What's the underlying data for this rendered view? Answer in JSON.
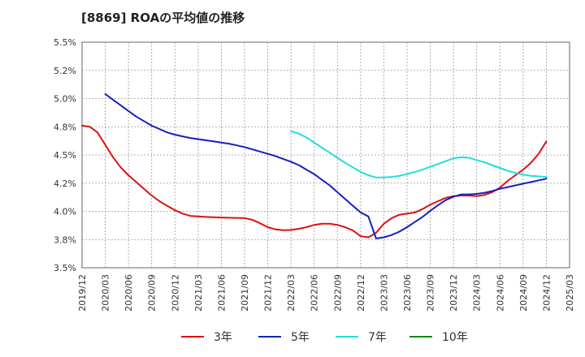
{
  "chart_data": {
    "type": "line",
    "title": "[8869]  ROAの平均値の推移",
    "xlabel": "",
    "ylabel": "",
    "x_ticks": [
      "2019/12",
      "2020/03",
      "2020/06",
      "2020/09",
      "2020/12",
      "2021/03",
      "2021/06",
      "2021/09",
      "2021/12",
      "2022/03",
      "2022/06",
      "2022/09",
      "2022/12",
      "2023/03",
      "2023/06",
      "2023/09",
      "2023/12",
      "2024/03",
      "2024/06",
      "2024/09",
      "2024/12",
      "2025/03"
    ],
    "y_ticks": [
      "3.5%",
      "3.8%",
      "4.0%",
      "4.2%",
      "4.5%",
      "4.8%",
      "5.0%",
      "5.2%",
      "5.5%"
    ],
    "ylim": [
      3.5,
      5.5
    ],
    "grid": true,
    "legend_position": "bottom",
    "series": [
      {
        "name": "3年",
        "color": "#dd1111",
        "points": [
          [
            "2019/12",
            4.76
          ],
          [
            "2020/01",
            4.75
          ],
          [
            "2020/02",
            4.7
          ],
          [
            "2020/03",
            4.59
          ],
          [
            "2020/04",
            4.48
          ],
          [
            "2020/05",
            4.39
          ],
          [
            "2020/06",
            4.32
          ],
          [
            "2020/07",
            4.26
          ],
          [
            "2020/08",
            4.2
          ],
          [
            "2020/09",
            4.14
          ],
          [
            "2020/10",
            4.09
          ],
          [
            "2020/11",
            4.05
          ],
          [
            "2020/12",
            4.01
          ],
          [
            "2021/01",
            3.98
          ],
          [
            "2021/02",
            3.96
          ],
          [
            "2021/03",
            3.955
          ],
          [
            "2021/04",
            3.95
          ],
          [
            "2021/05",
            3.948
          ],
          [
            "2021/06",
            3.945
          ],
          [
            "2021/07",
            3.943
          ],
          [
            "2021/08",
            3.942
          ],
          [
            "2021/09",
            3.94
          ],
          [
            "2021/10",
            3.925
          ],
          [
            "2021/11",
            3.895
          ],
          [
            "2021/12",
            3.86
          ],
          [
            "2022/01",
            3.84
          ],
          [
            "2022/02",
            3.833
          ],
          [
            "2022/03",
            3.835
          ],
          [
            "2022/04",
            3.845
          ],
          [
            "2022/05",
            3.86
          ],
          [
            "2022/06",
            3.88
          ],
          [
            "2022/07",
            3.89
          ],
          [
            "2022/08",
            3.89
          ],
          [
            "2022/09",
            3.88
          ],
          [
            "2022/10",
            3.86
          ],
          [
            "2022/11",
            3.83
          ],
          [
            "2022/12",
            3.78
          ],
          [
            "2023/01",
            3.77
          ],
          [
            "2023/02",
            3.81
          ],
          [
            "2023/03",
            3.89
          ],
          [
            "2023/04",
            3.94
          ],
          [
            "2023/05",
            3.97
          ],
          [
            "2023/06",
            3.98
          ],
          [
            "2023/07",
            3.99
          ],
          [
            "2023/08",
            4.02
          ],
          [
            "2023/09",
            4.06
          ],
          [
            "2023/10",
            4.09
          ],
          [
            "2023/11",
            4.12
          ],
          [
            "2023/12",
            4.135
          ],
          [
            "2024/01",
            4.14
          ],
          [
            "2024/02",
            4.14
          ],
          [
            "2024/03",
            4.135
          ],
          [
            "2024/04",
            4.145
          ],
          [
            "2024/05",
            4.17
          ],
          [
            "2024/06",
            4.21
          ],
          [
            "2024/07",
            4.27
          ],
          [
            "2024/08",
            4.32
          ],
          [
            "2024/09",
            4.37
          ],
          [
            "2024/10",
            4.43
          ],
          [
            "2024/11",
            4.51
          ],
          [
            "2024/12",
            4.62
          ]
        ]
      },
      {
        "name": "5年",
        "color": "#1122bb",
        "points": [
          [
            "2020/03",
            5.04
          ],
          [
            "2020/04",
            4.99
          ],
          [
            "2020/05",
            4.94
          ],
          [
            "2020/06",
            4.89
          ],
          [
            "2020/07",
            4.84
          ],
          [
            "2020/08",
            4.8
          ],
          [
            "2020/09",
            4.76
          ],
          [
            "2020/10",
            4.73
          ],
          [
            "2020/11",
            4.7
          ],
          [
            "2020/12",
            4.68
          ],
          [
            "2021/01",
            4.665
          ],
          [
            "2021/02",
            4.65
          ],
          [
            "2021/03",
            4.64
          ],
          [
            "2021/04",
            4.63
          ],
          [
            "2021/05",
            4.62
          ],
          [
            "2021/06",
            4.61
          ],
          [
            "2021/07",
            4.6
          ],
          [
            "2021/08",
            4.585
          ],
          [
            "2021/09",
            4.57
          ],
          [
            "2021/10",
            4.55
          ],
          [
            "2021/11",
            4.53
          ],
          [
            "2021/12",
            4.51
          ],
          [
            "2022/01",
            4.49
          ],
          [
            "2022/02",
            4.465
          ],
          [
            "2022/03",
            4.44
          ],
          [
            "2022/04",
            4.41
          ],
          [
            "2022/05",
            4.37
          ],
          [
            "2022/06",
            4.33
          ],
          [
            "2022/07",
            4.28
          ],
          [
            "2022/08",
            4.23
          ],
          [
            "2022/09",
            4.17
          ],
          [
            "2022/10",
            4.11
          ],
          [
            "2022/11",
            4.05
          ],
          [
            "2022/12",
            3.99
          ],
          [
            "2023/01",
            3.955
          ],
          [
            "2023/02",
            3.76
          ],
          [
            "2023/03",
            3.77
          ],
          [
            "2023/04",
            3.79
          ],
          [
            "2023/05",
            3.82
          ],
          [
            "2023/06",
            3.86
          ],
          [
            "2023/07",
            3.905
          ],
          [
            "2023/08",
            3.95
          ],
          [
            "2023/09",
            4.005
          ],
          [
            "2023/10",
            4.055
          ],
          [
            "2023/11",
            4.1
          ],
          [
            "2023/12",
            4.13
          ],
          [
            "2024/01",
            4.15
          ],
          [
            "2024/02",
            4.15
          ],
          [
            "2024/03",
            4.155
          ],
          [
            "2024/04",
            4.165
          ],
          [
            "2024/05",
            4.18
          ],
          [
            "2024/06",
            4.2
          ],
          [
            "2024/07",
            4.215
          ],
          [
            "2024/08",
            4.23
          ],
          [
            "2024/09",
            4.245
          ],
          [
            "2024/10",
            4.26
          ],
          [
            "2024/11",
            4.275
          ],
          [
            "2024/12",
            4.29
          ]
        ]
      },
      {
        "name": "7年",
        "color": "#22dddd",
        "points": [
          [
            "2022/03",
            4.71
          ],
          [
            "2022/04",
            4.69
          ],
          [
            "2022/05",
            4.655
          ],
          [
            "2022/06",
            4.61
          ],
          [
            "2022/07",
            4.565
          ],
          [
            "2022/08",
            4.52
          ],
          [
            "2022/09",
            4.475
          ],
          [
            "2022/10",
            4.43
          ],
          [
            "2022/11",
            4.39
          ],
          [
            "2022/12",
            4.35
          ],
          [
            "2023/01",
            4.32
          ],
          [
            "2023/02",
            4.3
          ],
          [
            "2023/03",
            4.3
          ],
          [
            "2023/04",
            4.305
          ],
          [
            "2023/05",
            4.315
          ],
          [
            "2023/06",
            4.33
          ],
          [
            "2023/07",
            4.35
          ],
          [
            "2023/08",
            4.37
          ],
          [
            "2023/09",
            4.395
          ],
          [
            "2023/10",
            4.42
          ],
          [
            "2023/11",
            4.445
          ],
          [
            "2023/12",
            4.47
          ],
          [
            "2024/01",
            4.48
          ],
          [
            "2024/02",
            4.475
          ],
          [
            "2024/03",
            4.455
          ],
          [
            "2024/04",
            4.435
          ],
          [
            "2024/05",
            4.41
          ],
          [
            "2024/06",
            4.385
          ],
          [
            "2024/07",
            4.36
          ],
          [
            "2024/08",
            4.34
          ],
          [
            "2024/09",
            4.325
          ],
          [
            "2024/10",
            4.315
          ],
          [
            "2024/11",
            4.31
          ],
          [
            "2024/12",
            4.305
          ]
        ]
      },
      {
        "name": "10年",
        "color": "#118811",
        "points": []
      }
    ]
  }
}
